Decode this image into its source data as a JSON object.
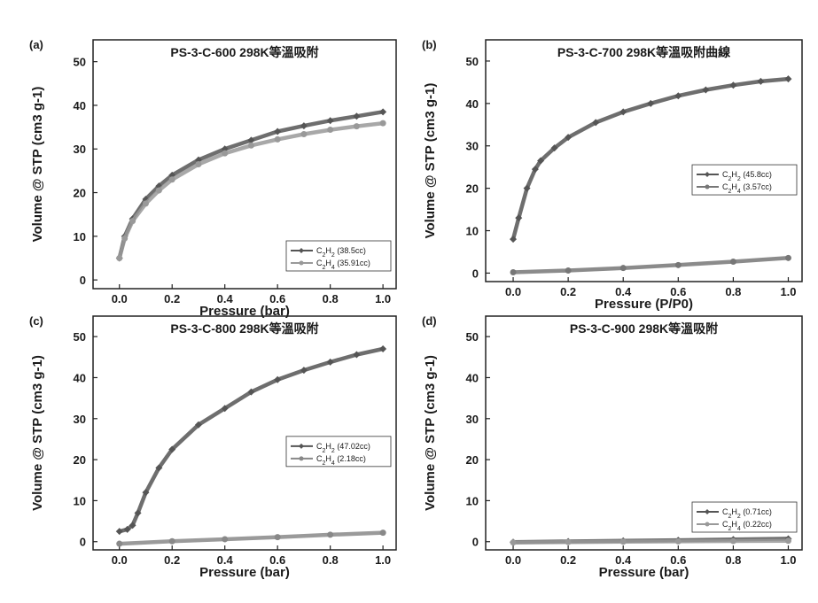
{
  "chart_data": [
    {
      "type": "line",
      "panel_label": "(a)",
      "title": "PS-3-C-600 298K等溫吸附",
      "xlabel": "Pressure (bar)",
      "ylabel": "Volume @ STP (cm3 g-1)",
      "xlim": [
        -0.1,
        1.05
      ],
      "ylim": [
        -2,
        55
      ],
      "xticks": [
        0.0,
        0.2,
        0.4,
        0.6,
        0.8,
        1.0
      ],
      "yticks": [
        0,
        10,
        20,
        30,
        40,
        50
      ],
      "grid": false,
      "legend_position": "bottom-right",
      "series": [
        {
          "name": "C2H2 (38.5cc)",
          "color": "#555555",
          "x": [
            0.0,
            0.02,
            0.05,
            0.1,
            0.15,
            0.2,
            0.3,
            0.4,
            0.5,
            0.6,
            0.7,
            0.8,
            0.9,
            1.0
          ],
          "y": [
            5,
            10,
            14,
            18.5,
            21.5,
            24,
            27.5,
            30,
            32,
            34,
            35.3,
            36.5,
            37.5,
            38.5
          ]
        },
        {
          "name": "C2H4 (35.91cc)",
          "color": "#999999",
          "x": [
            0.0,
            0.02,
            0.05,
            0.1,
            0.15,
            0.2,
            0.3,
            0.4,
            0.5,
            0.6,
            0.7,
            0.8,
            0.9,
            1.0
          ],
          "y": [
            5,
            9.5,
            13.5,
            17.5,
            20.5,
            23,
            26.5,
            29,
            30.8,
            32.2,
            33.4,
            34.4,
            35.2,
            35.9
          ]
        }
      ]
    },
    {
      "type": "line",
      "panel_label": "(b)",
      "title": "PS-3-C-700 298K等溫吸附曲線",
      "xlabel": "Pressure (P/P0)",
      "ylabel": "Volume @ STP (cm3 g-1)",
      "xlim": [
        -0.1,
        1.05
      ],
      "ylim": [
        -2,
        55
      ],
      "xticks": [
        0.0,
        0.2,
        0.4,
        0.6,
        0.8,
        1.0
      ],
      "yticks": [
        0,
        10,
        20,
        30,
        40,
        50
      ],
      "grid": false,
      "legend_position": "middle-right",
      "series": [
        {
          "name": "C2H2 (45.8cc)",
          "color": "#555555",
          "x": [
            0.0,
            0.02,
            0.05,
            0.08,
            0.1,
            0.15,
            0.2,
            0.3,
            0.4,
            0.5,
            0.6,
            0.7,
            0.8,
            0.9,
            1.0
          ],
          "y": [
            8,
            13,
            20,
            24.5,
            26.5,
            29.5,
            32,
            35.5,
            38,
            40,
            41.8,
            43.2,
            44.3,
            45.2,
            45.8
          ]
        },
        {
          "name": "C2H4 (3.57cc)",
          "color": "#777777",
          "x": [
            0.0,
            0.2,
            0.4,
            0.6,
            0.8,
            1.0
          ],
          "y": [
            0.2,
            0.6,
            1.2,
            1.9,
            2.7,
            3.57
          ]
        }
      ]
    },
    {
      "type": "line",
      "panel_label": "(c)",
      "title": "PS-3-C-800 298K等溫吸附",
      "xlabel": "Pressure (bar)",
      "ylabel": "Volume @ STP (cm3 g-1)",
      "xlim": [
        -0.1,
        1.05
      ],
      "ylim": [
        -2,
        55
      ],
      "xticks": [
        0.0,
        0.2,
        0.4,
        0.6,
        0.8,
        1.0
      ],
      "yticks": [
        0,
        10,
        20,
        30,
        40,
        50
      ],
      "grid": false,
      "legend_position": "middle-right",
      "series": [
        {
          "name": "C2H2 (47.02cc)",
          "color": "#555555",
          "x": [
            0.0,
            0.03,
            0.05,
            0.07,
            0.1,
            0.15,
            0.2,
            0.3,
            0.4,
            0.5,
            0.6,
            0.7,
            0.8,
            0.9,
            1.0
          ],
          "y": [
            2.5,
            3,
            4,
            7,
            12,
            18,
            22.5,
            28.5,
            32.5,
            36.5,
            39.5,
            41.8,
            43.8,
            45.6,
            47.02
          ]
        },
        {
          "name": "C2H4 (2.18cc)",
          "color": "#888888",
          "x": [
            0.0,
            0.2,
            0.4,
            0.6,
            0.8,
            1.0
          ],
          "y": [
            -0.5,
            0.1,
            0.6,
            1.1,
            1.7,
            2.18
          ]
        }
      ]
    },
    {
      "type": "line",
      "panel_label": "(d)",
      "title": "PS-3-C-900 298K等溫吸附",
      "xlabel": "Pressure (bar)",
      "ylabel": "Volume @ STP (cm3 g-1)",
      "xlim": [
        -0.1,
        1.05
      ],
      "ylim": [
        -2,
        55
      ],
      "xticks": [
        0.0,
        0.2,
        0.4,
        0.6,
        0.8,
        1.0
      ],
      "yticks": [
        0,
        10,
        20,
        30,
        40,
        50
      ],
      "grid": false,
      "legend_position": "bottom-right",
      "series": [
        {
          "name": "C2H2 (0.71cc)",
          "color": "#555555",
          "x": [
            0.0,
            0.2,
            0.4,
            0.6,
            0.8,
            1.0
          ],
          "y": [
            -0.1,
            0.05,
            0.2,
            0.35,
            0.55,
            0.71
          ]
        },
        {
          "name": "C2H4 (0.22cc)",
          "color": "#999999",
          "x": [
            0.0,
            0.2,
            0.4,
            0.6,
            0.8,
            1.0
          ],
          "y": [
            -0.2,
            -0.1,
            0.0,
            0.08,
            0.15,
            0.22
          ]
        }
      ]
    }
  ]
}
